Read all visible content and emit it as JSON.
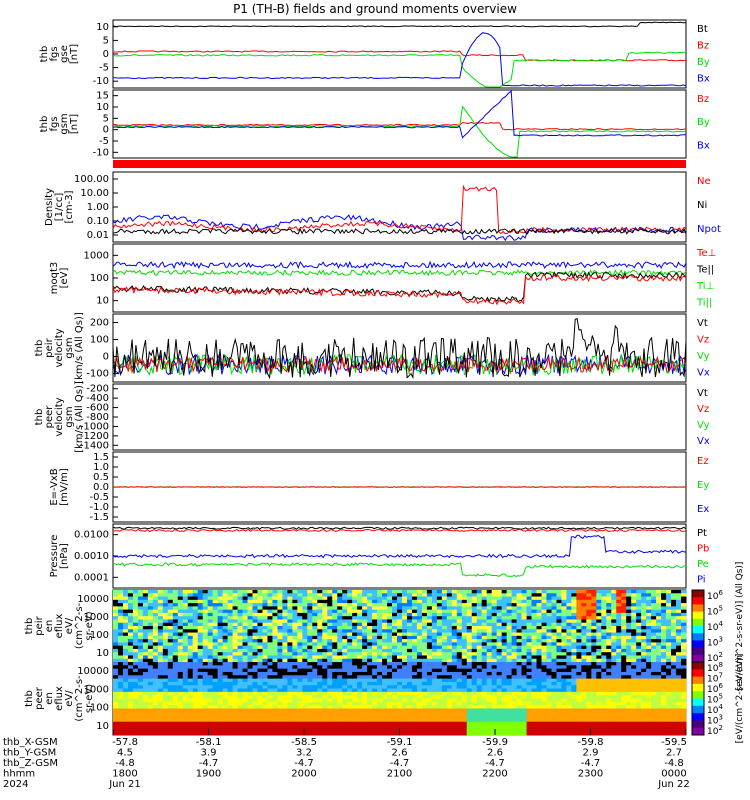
{
  "title": "P1 (TH-B) fields and ground moments overview",
  "colors": {
    "black": "#000000",
    "red": "#ff0000",
    "green": "#00e000",
    "blue": "#0000ff"
  },
  "chart_data": [
    {
      "type": "line",
      "ylabel": [
        "thb",
        "fgs",
        "gse",
        "[nT]"
      ],
      "yticks": [
        10,
        5,
        0,
        -5,
        -10
      ],
      "ylim": [
        -13,
        14
      ],
      "legend": [
        {
          "name": "Bt",
          "color": "black"
        },
        {
          "name": "Bz",
          "color": "red"
        },
        {
          "name": "By",
          "color": "green"
        },
        {
          "name": "Bx",
          "color": "blue"
        }
      ]
    },
    {
      "type": "line",
      "ylabel": [
        "thb",
        "fgs",
        "gsm",
        "[nT]"
      ],
      "yticks": [
        15,
        10,
        5,
        0,
        -5,
        -10
      ],
      "ylim": [
        -15,
        18
      ],
      "legend": [
        {
          "name": "Bz",
          "color": "red"
        },
        {
          "name": "By",
          "color": "green"
        },
        {
          "name": "Bx",
          "color": "blue"
        }
      ]
    },
    {
      "type": "line",
      "ylabel": [
        "Density",
        "[1/cc]",
        "[cm-3]"
      ],
      "yticks": [
        "100.00",
        "10.00",
        "1.00",
        "0.10",
        "0.01"
      ],
      "scale": "log",
      "legend": [
        {
          "name": "Ne",
          "color": "red"
        },
        {
          "name": "Ni",
          "color": "black"
        },
        {
          "name": "Npot",
          "color": "blue"
        }
      ]
    },
    {
      "type": "line",
      "ylabel": [
        "moqt3",
        "[eV]"
      ],
      "yticks": [
        "1000",
        "100",
        "10"
      ],
      "scale": "log",
      "legend": [
        {
          "name": "Te⊥",
          "color": "red"
        },
        {
          "name": "Te||",
          "color": "black"
        },
        {
          "name": "Ti⊥",
          "color": "green"
        },
        {
          "name": "Ti||",
          "color": "green"
        }
      ]
    },
    {
      "type": "line",
      "ylabel": [
        "thb",
        "peir",
        "velocity",
        "gsm",
        "[km/s (All Qs)]"
      ],
      "yticks": [
        200,
        100,
        0,
        -100
      ],
      "ylim": [
        -100,
        290
      ],
      "legend": [
        {
          "name": "Vt",
          "color": "black"
        },
        {
          "name": "Vz",
          "color": "red"
        },
        {
          "name": "Vy",
          "color": "green"
        },
        {
          "name": "Vx",
          "color": "blue"
        }
      ]
    },
    {
      "type": "line",
      "ylabel": [
        "thb",
        "peer",
        "velocity",
        "gsm",
        "[km/s (All Qs)]"
      ],
      "yticks": [
        -200,
        -400,
        -600,
        -800,
        -1000,
        -1200,
        -1400
      ],
      "ylim": [
        -1520,
        -110
      ],
      "legend": [
        {
          "name": "Vt",
          "color": "black"
        },
        {
          "name": "Vz",
          "color": "red"
        },
        {
          "name": "Vy",
          "color": "green"
        },
        {
          "name": "Vx",
          "color": "blue"
        }
      ]
    },
    {
      "type": "line",
      "ylabel": [
        "E=-VxB",
        "[mV/m]"
      ],
      "yticks": [
        "1.5",
        "1.0",
        "0.5",
        "0.0",
        "-0.5",
        "-1.0",
        "-1.5"
      ],
      "ylim": [
        -1.75,
        1.75
      ],
      "legend": [
        {
          "name": "Ez",
          "color": "red"
        },
        {
          "name": "Ey",
          "color": "green"
        },
        {
          "name": "Ex",
          "color": "blue"
        }
      ]
    },
    {
      "type": "line",
      "ylabel": [
        "Pressure",
        "[nPa]"
      ],
      "yticks": [
        "0.0100",
        "0.0010",
        "0.0001"
      ],
      "scale": "log",
      "legend": [
        {
          "name": "Pt",
          "color": "black"
        },
        {
          "name": "Pb",
          "color": "red"
        },
        {
          "name": "Pe",
          "color": "green"
        },
        {
          "name": "Pi",
          "color": "blue"
        }
      ]
    },
    {
      "type": "heatmap",
      "ylabel": [
        "thb",
        "peir",
        "en",
        "eflux",
        "eV/",
        "(cm^2-s-",
        "sr-eV)"
      ],
      "yticks": [
        "10000",
        "1000",
        "100",
        "10"
      ],
      "scale": "log",
      "colorbar": {
        "ticks": [
          "10^6",
          "10^5",
          "10^4",
          "10^3",
          "10^2"
        ],
        "label": "[eV/(cm^2-s-sr-eV)] (All Qs)]"
      }
    },
    {
      "type": "heatmap",
      "ylabel": [
        "thb",
        "peer",
        "en",
        "eflux",
        "eV/",
        "(cm^2-s-",
        "sr-eV)"
      ],
      "yticks": [
        "10000",
        "1000",
        "100",
        "10"
      ],
      "scale": "log",
      "colorbar": {
        "ticks": [
          "10^8",
          "10^7",
          "10^6",
          "10^5",
          "10^4",
          "10^3",
          "10^2"
        ],
        "label": "[eV/(cm^2-s-sr-eV)]"
      }
    }
  ],
  "time_axis": {
    "rows": [
      {
        "label": "thb_X-GSM",
        "values": [
          "-57.8",
          "-58.1",
          "-58.5",
          "-59.1",
          "-59.9",
          "-59.8",
          "-59.5"
        ]
      },
      {
        "label": "thb_Y-GSM",
        "values": [
          "4.5",
          "3.9",
          "3.2",
          "2.6",
          "2.6",
          "2.9",
          "2.7"
        ]
      },
      {
        "label": "thb_Z-GSM",
        "values": [
          "-4.8",
          "-4.7",
          "-4.7",
          "-4.7",
          "-4.7",
          "-4.7",
          "-4.8"
        ]
      },
      {
        "label": "hhmm",
        "values": [
          "1800",
          "1900",
          "2000",
          "2100",
          "2200",
          "2300",
          "0000"
        ]
      },
      {
        "label": "2024",
        "values": [
          "Jun 21",
          "",
          "",
          "",
          "",
          "",
          "Jun 22"
        ]
      }
    ]
  }
}
